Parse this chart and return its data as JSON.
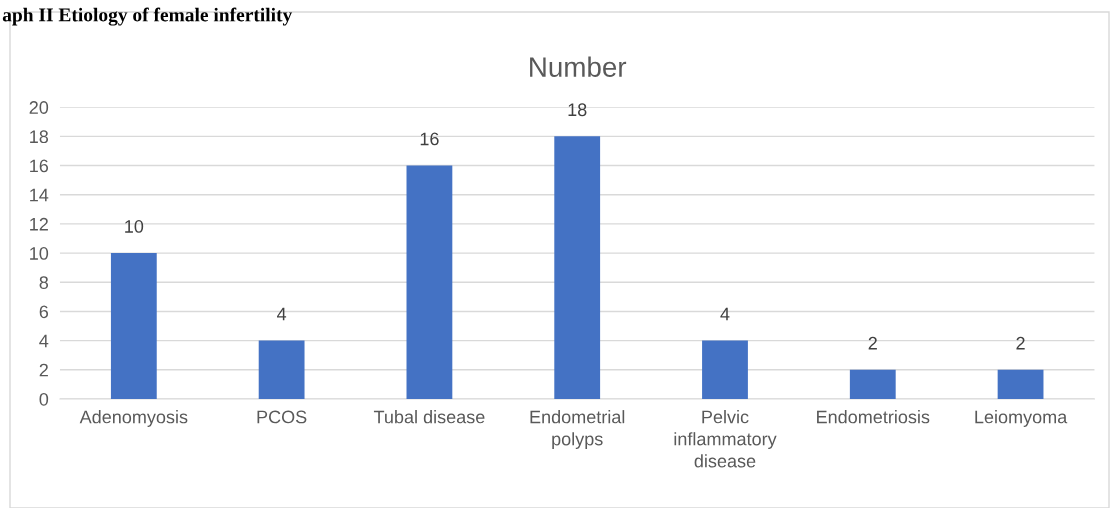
{
  "chart_data": {
    "type": "bar",
    "title": "Number",
    "categories": [
      "Adenomyosis",
      "PCOS",
      "Tubal disease",
      "Endometrial\npolyps",
      "Pelvic\ninflammatory\ndisease",
      "Endometriosis",
      "Leiomyoma"
    ],
    "values": [
      10,
      4,
      16,
      18,
      4,
      2,
      2
    ],
    "color": "#4472c4",
    "ylim": [
      0,
      20
    ],
    "yticks": [
      0,
      2,
      4,
      6,
      8,
      10,
      12,
      14,
      16,
      18,
      20
    ],
    "grid": "y",
    "data_labels": true,
    "legend": false,
    "annotations": [
      "aph II Etiology of female infertility"
    ]
  }
}
